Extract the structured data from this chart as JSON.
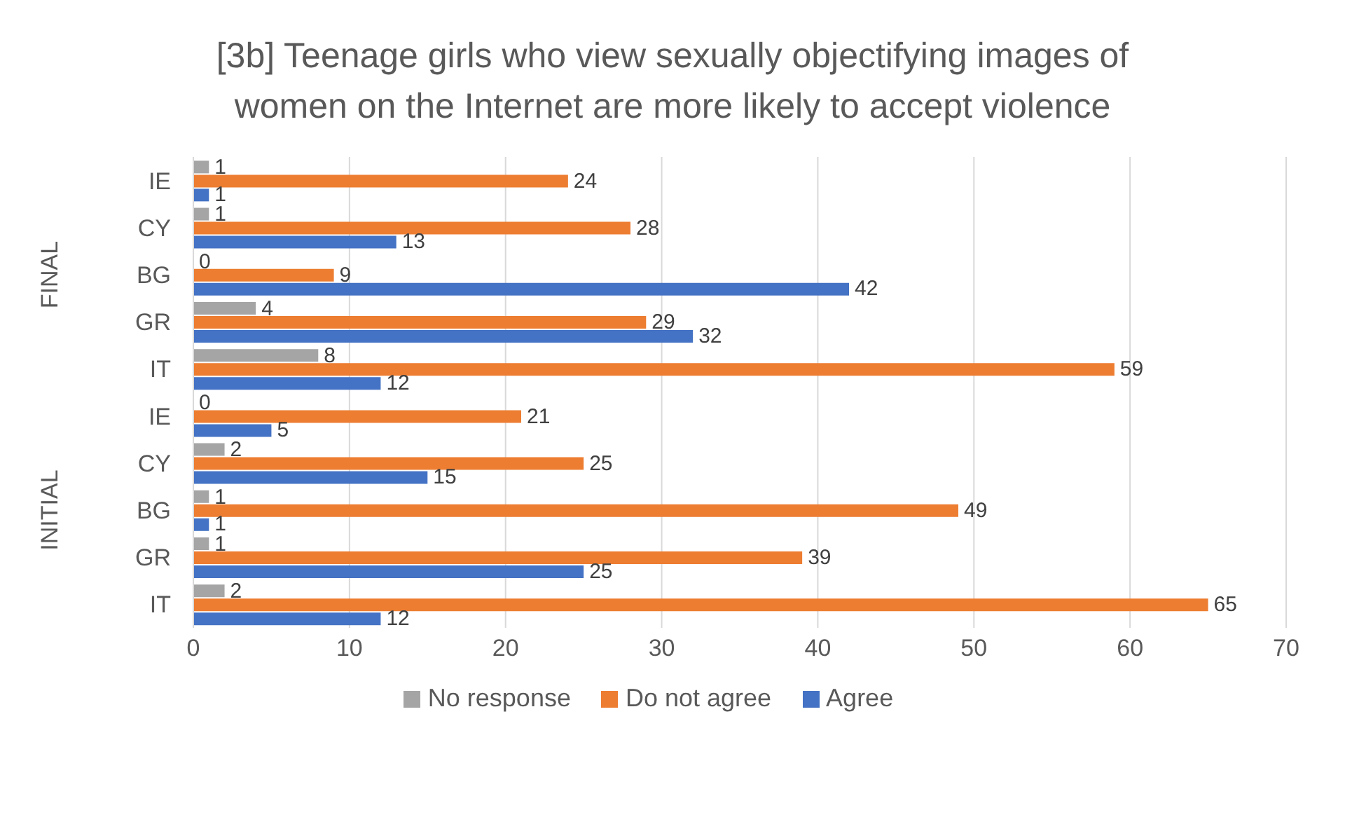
{
  "chart_data": {
    "type": "bar",
    "orientation": "horizontal",
    "title": "[3b] Teenage girls who view sexually objectifying images of women on the Internet are more likely to accept violence",
    "categories": [
      "IE",
      "CY",
      "BG",
      "GR",
      "IT",
      "IE",
      "CY",
      "BG",
      "GR",
      "IT"
    ],
    "annotations": [
      "FINAL",
      "INITIAL"
    ],
    "series": [
      {
        "name": "No response",
        "color": "#a5a5a5",
        "values": [
          1,
          1,
          0,
          4,
          8,
          0,
          2,
          1,
          1,
          2
        ]
      },
      {
        "name": "Do not agree",
        "color": "#ed7d31",
        "values": [
          24,
          28,
          9,
          29,
          59,
          21,
          25,
          49,
          39,
          65
        ]
      },
      {
        "name": "Agree",
        "color": "#4472c4",
        "values": [
          1,
          13,
          42,
          32,
          12,
          5,
          15,
          1,
          25,
          12
        ]
      }
    ],
    "xlim": [
      0,
      70
    ],
    "xticks": [
      0,
      10,
      20,
      30,
      40,
      50,
      60,
      70
    ],
    "grid": "x",
    "legend": "bottom",
    "data_labels": true
  }
}
